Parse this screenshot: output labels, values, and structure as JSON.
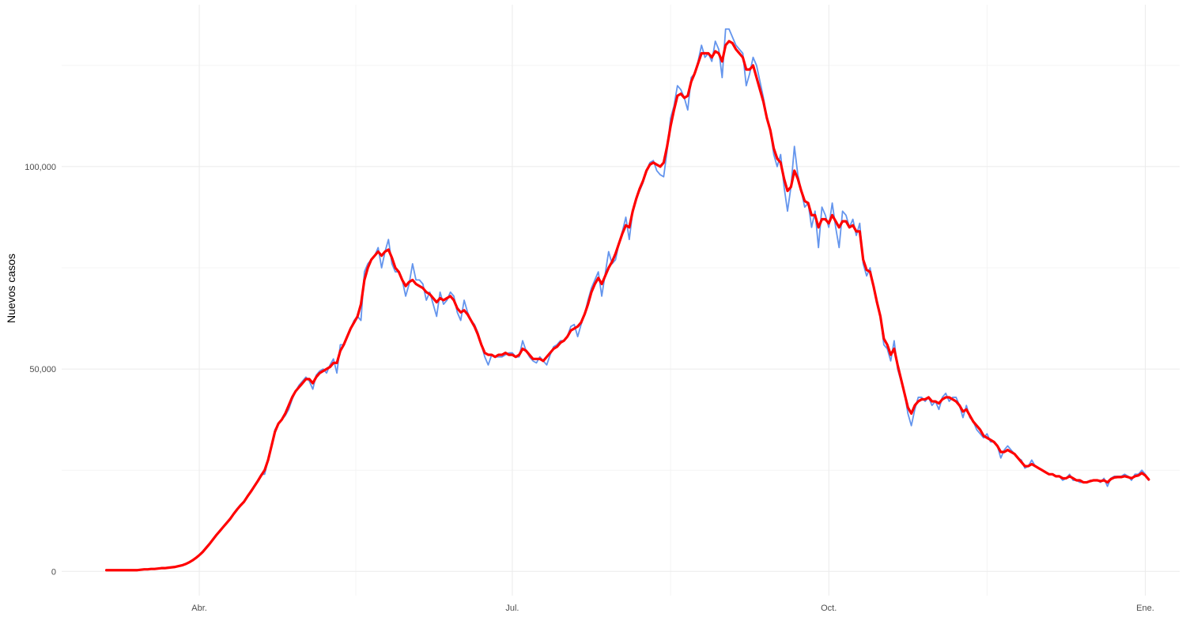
{
  "chart_data": {
    "type": "line",
    "ylabel": "Nuevos casos",
    "xlabel": "",
    "x_tick_labels": [
      {
        "label": "Abr.",
        "date": "2020-04-01"
      },
      {
        "label": "Jul.",
        "date": "2020-07-01"
      },
      {
        "label": "Oct.",
        "date": "2020-10-01"
      },
      {
        "label": "Ene.",
        "date": "2021-01-01"
      }
    ],
    "y_tick_labels": [
      {
        "label": "0",
        "value": 0
      },
      {
        "label": "50,000",
        "value": 50000
      },
      {
        "label": "100,000",
        "value": 100000
      }
    ],
    "x_range": [
      "2020-02-21",
      "2021-01-11"
    ],
    "y_range": [
      -6000,
      140000
    ],
    "grid": true,
    "legend": "none",
    "colors": {
      "daily": "#6495ED",
      "smoothed": "#FF0000"
    },
    "series": [
      {
        "key": "daily",
        "x_start": "2020-03-05",
        "values": [
          300,
          300,
          300,
          300,
          300,
          300,
          300,
          300,
          300,
          300,
          400,
          500,
          500,
          600,
          600,
          700,
          800,
          800,
          900,
          1000,
          1100,
          1300,
          1500,
          1800,
          2200,
          2700,
          3300,
          4100,
          5000,
          6000,
          7000,
          8000,
          9100,
          10100,
          11000,
          12000,
          13200,
          14300,
          15500,
          16500,
          17000,
          18500,
          20000,
          21000,
          22500,
          24000,
          24000,
          27500,
          31000,
          35000,
          36500,
          37500,
          38500,
          40000,
          42500,
          44500,
          46000,
          47000,
          48000,
          47000,
          45000,
          48500,
          49500,
          50000,
          49000,
          51000,
          52500,
          49000,
          56000,
          56000,
          58000,
          60000,
          62000,
          63000,
          62000,
          74000,
          76000,
          77000,
          78000,
          80000,
          75000,
          79000,
          82000,
          76000,
          74000,
          74000,
          72000,
          68000,
          71000,
          76000,
          72000,
          72000,
          71000,
          67000,
          69000,
          66000,
          63000,
          69000,
          66000,
          67000,
          69000,
          68000,
          64000,
          62000,
          67000,
          64000,
          62000,
          61000,
          59000,
          56000,
          53000,
          51000,
          53500,
          53000,
          53000,
          53000,
          53500,
          54000,
          54000,
          53000,
          53000,
          57000,
          54500,
          53000,
          52000,
          51500,
          53000,
          52000,
          51000,
          53500,
          55500,
          56000,
          57000,
          57000,
          58000,
          60500,
          61000,
          58000,
          61000,
          63500,
          67000,
          70000,
          72000,
          74000,
          68000,
          73500,
          79000,
          76000,
          77000,
          81000,
          84000,
          87500,
          82000,
          89000,
          92000,
          94000,
          96000,
          99000,
          101000,
          101500,
          99000,
          98000,
          97500,
          104000,
          112000,
          115000,
          120000,
          119000,
          117000,
          114000,
          122000,
          123000,
          126000,
          130000,
          127000,
          128000,
          126000,
          131000,
          129000,
          122000,
          134000,
          134000,
          132000,
          130000,
          129000,
          128000,
          120000,
          123000,
          127000,
          125000,
          121000,
          117000,
          112000,
          109000,
          103000,
          100000,
          103000,
          95000,
          89000,
          95000,
          105000,
          98000,
          94000,
          90000,
          91000,
          85000,
          89000,
          80000,
          90000,
          88000,
          85000,
          91000,
          85000,
          80000,
          89000,
          88000,
          85000,
          87000,
          83000,
          86000,
          76000,
          73000,
          75000,
          70000,
          66000,
          63000,
          56000,
          55000,
          52000,
          57000,
          50000,
          47000,
          44000,
          39000,
          36000,
          40000,
          43000,
          43000,
          42000,
          43000,
          41000,
          42000,
          40000,
          43000,
          44000,
          42000,
          43000,
          43000,
          41000,
          38000,
          41000,
          38000,
          37000,
          35000,
          34000,
          33000,
          34000,
          32000,
          32000,
          31000,
          28000,
          30000,
          31000,
          30000,
          29000,
          28000,
          27500,
          25500,
          26000,
          27500,
          26000,
          25500,
          25000,
          24500,
          24000,
          24000,
          23500,
          23500,
          22500,
          23000,
          24000,
          22500,
          22500,
          22000,
          22000,
          22000,
          22500,
          22500,
          22500,
          22000,
          23000,
          21000,
          23000,
          23500,
          23500,
          23500,
          24000,
          23500,
          22500,
          24000,
          24000,
          25000,
          24000,
          22500
        ]
      },
      {
        "key": "smoothed",
        "x_start": "2020-03-05",
        "values": [
          300,
          300,
          300,
          300,
          300,
          300,
          300,
          300,
          300,
          300,
          400,
          500,
          500,
          600,
          600,
          700,
          800,
          800,
          900,
          1000,
          1100,
          1300,
          1500,
          1800,
          2200,
          2700,
          3300,
          4000,
          4800,
          5800,
          6800,
          7900,
          9000,
          10000,
          11000,
          12000,
          13000,
          14200,
          15300,
          16300,
          17200,
          18500,
          19700,
          21000,
          22300,
          23700,
          25000,
          27500,
          31000,
          34500,
          36500,
          37500,
          39000,
          41000,
          43000,
          44500,
          45500,
          46500,
          47500,
          47500,
          46500,
          48000,
          49000,
          49500,
          50000,
          50500,
          51500,
          51500,
          54500,
          56000,
          58000,
          60000,
          61500,
          63000,
          66000,
          72000,
          75000,
          77000,
          78000,
          79000,
          78000,
          79000,
          79500,
          77500,
          75000,
          74000,
          72000,
          70500,
          71500,
          72000,
          71000,
          70500,
          70000,
          69000,
          68500,
          67500,
          66500,
          67500,
          67000,
          67500,
          68000,
          67000,
          65000,
          64000,
          64500,
          63500,
          62000,
          60500,
          58500,
          56000,
          54000,
          53500,
          53500,
          53000,
          53500,
          53500,
          54000,
          53500,
          53500,
          53000,
          53500,
          55000,
          54500,
          53500,
          52500,
          52500,
          52500,
          52000,
          53000,
          54000,
          55000,
          55500,
          56500,
          57000,
          58000,
          59500,
          60000,
          60500,
          61500,
          63500,
          66000,
          69000,
          71000,
          72500,
          71000,
          73000,
          75000,
          76500,
          78500,
          81000,
          83500,
          85500,
          85000,
          89000,
          92000,
          94500,
          96500,
          99000,
          100500,
          101000,
          100500,
          100000,
          101000,
          105000,
          110000,
          114000,
          117500,
          118000,
          117000,
          117500,
          121000,
          123000,
          125500,
          128000,
          128000,
          128000,
          127000,
          128500,
          128000,
          126000,
          130000,
          131000,
          130500,
          129000,
          128000,
          127000,
          124000,
          124000,
          125000,
          122000,
          119000,
          116000,
          112000,
          109000,
          104500,
          102000,
          101000,
          97000,
          94000,
          95000,
          99000,
          97000,
          94000,
          91500,
          91000,
          88000,
          88000,
          85000,
          87000,
          87000,
          86000,
          88000,
          86500,
          85000,
          86500,
          86500,
          85000,
          85500,
          84000,
          84000,
          77000,
          74500,
          74000,
          70500,
          66500,
          63000,
          57500,
          56000,
          53500,
          55000,
          51000,
          47500,
          44000,
          40500,
          39000,
          41000,
          42000,
          42500,
          42500,
          43000,
          42000,
          42000,
          41500,
          42500,
          43000,
          43000,
          42500,
          42000,
          41000,
          39500,
          40000,
          38500,
          37000,
          36000,
          35000,
          33500,
          33000,
          32500,
          32000,
          31000,
          29500,
          29500,
          30000,
          29500,
          29000,
          28000,
          27000,
          26000,
          26000,
          26500,
          26000,
          25500,
          25000,
          24500,
          24000,
          24000,
          23500,
          23500,
          23000,
          23000,
          23500,
          23000,
          22500,
          22500,
          22000,
          22000,
          22300,
          22500,
          22500,
          22300,
          22500,
          22000,
          22800,
          23200,
          23300,
          23300,
          23500,
          23300,
          23000,
          23500,
          23700,
          24300,
          23700,
          22700
        ]
      }
    ]
  }
}
